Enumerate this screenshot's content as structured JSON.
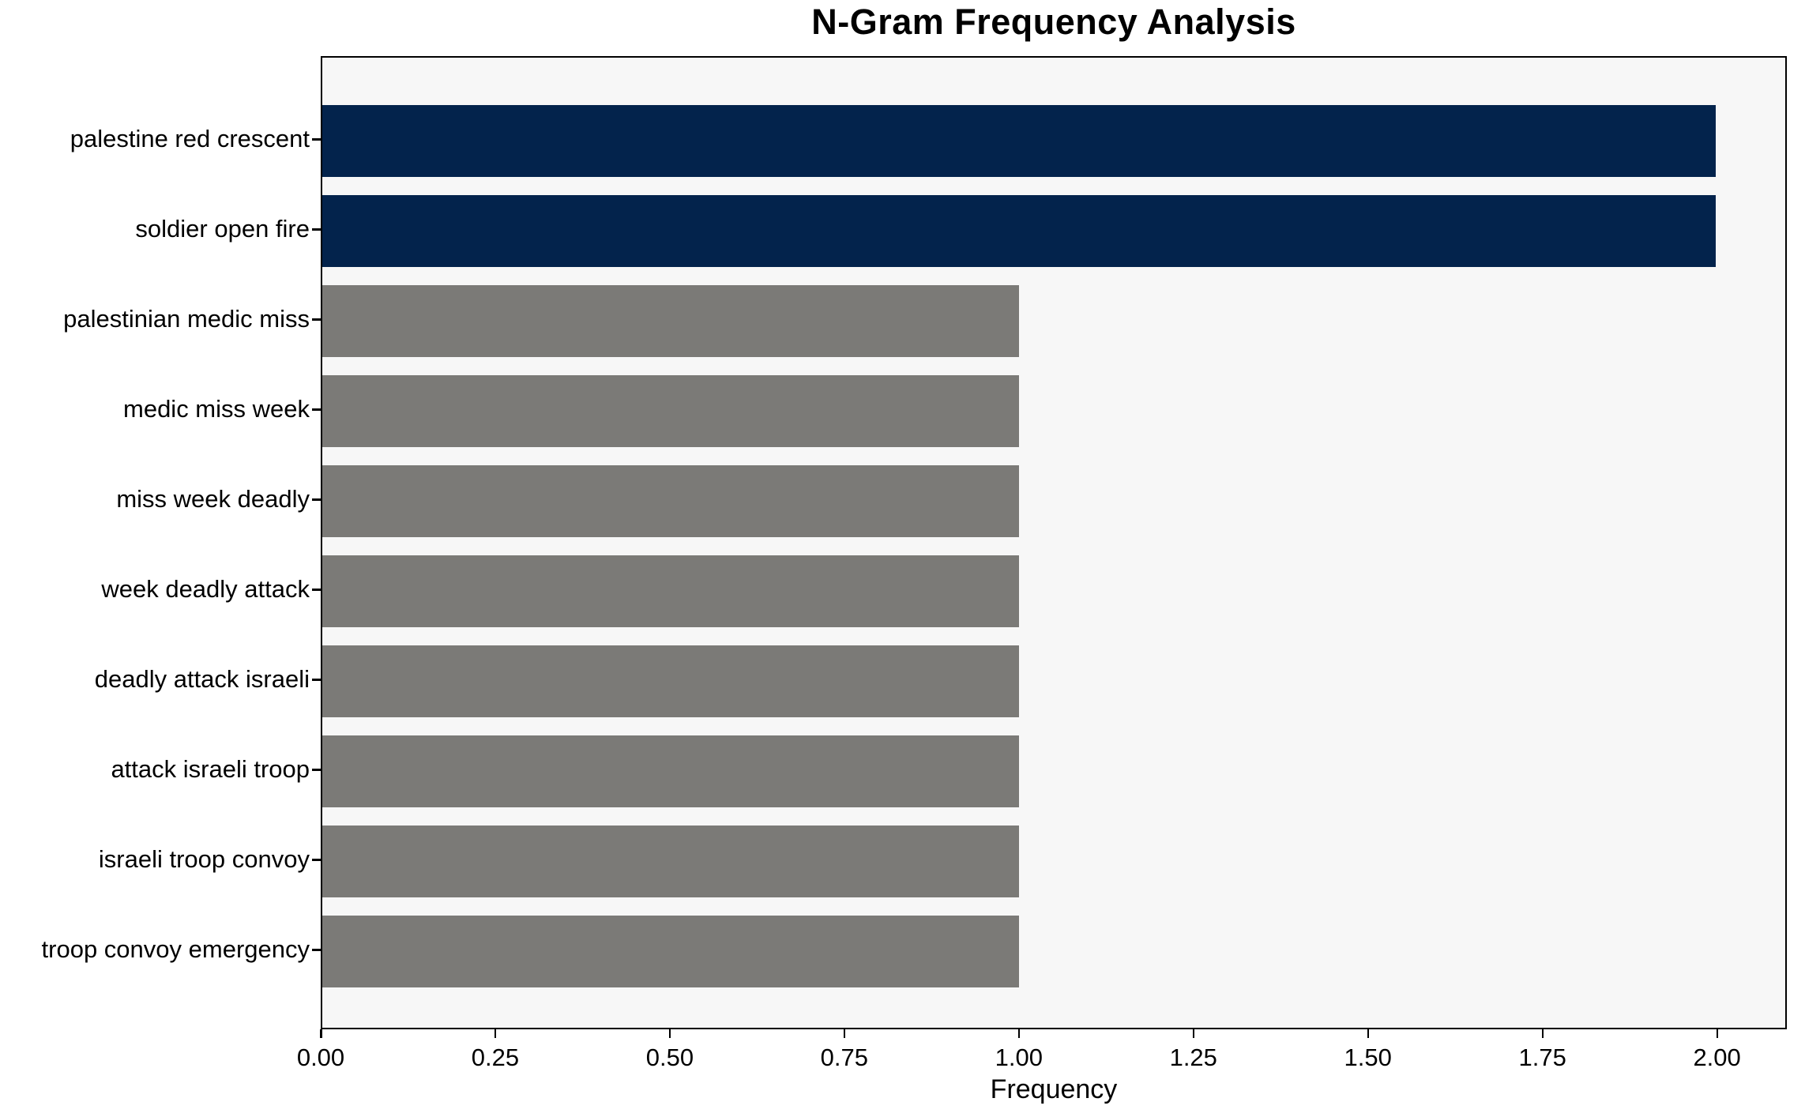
{
  "chart_data": {
    "type": "bar",
    "orientation": "horizontal",
    "title": "N-Gram Frequency Analysis",
    "xlabel": "Frequency",
    "ylabel": "",
    "categories": [
      "palestine red crescent",
      "soldier open fire",
      "palestinian medic miss",
      "medic miss week",
      "miss week deadly",
      "week deadly attack",
      "deadly attack israeli",
      "attack israeli troop",
      "israeli troop convoy",
      "troop convoy emergency"
    ],
    "values": [
      2,
      2,
      1,
      1,
      1,
      1,
      1,
      1,
      1,
      1
    ],
    "bar_colors": [
      "#03234c",
      "#03234c",
      "#7b7a77",
      "#7b7a77",
      "#7b7a77",
      "#7b7a77",
      "#7b7a77",
      "#7b7a77",
      "#7b7a77",
      "#7b7a77"
    ],
    "xlim": [
      0,
      2.1
    ],
    "x_tick_values": [
      0,
      0.25,
      0.5,
      0.75,
      1.0,
      1.25,
      1.5,
      1.75,
      2.0
    ],
    "x_tick_labels": [
      "0.00",
      "0.25",
      "0.50",
      "0.75",
      "1.00",
      "1.25",
      "1.50",
      "1.75",
      "2.00"
    ],
    "grid": false,
    "legend": "none",
    "colors": {
      "highlight_bar": "#03234c",
      "default_bar": "#7b7a77",
      "plot_background": "#f7f7f7",
      "figure_background": "#ffffff",
      "axis": "#000000",
      "text": "#000000"
    }
  }
}
